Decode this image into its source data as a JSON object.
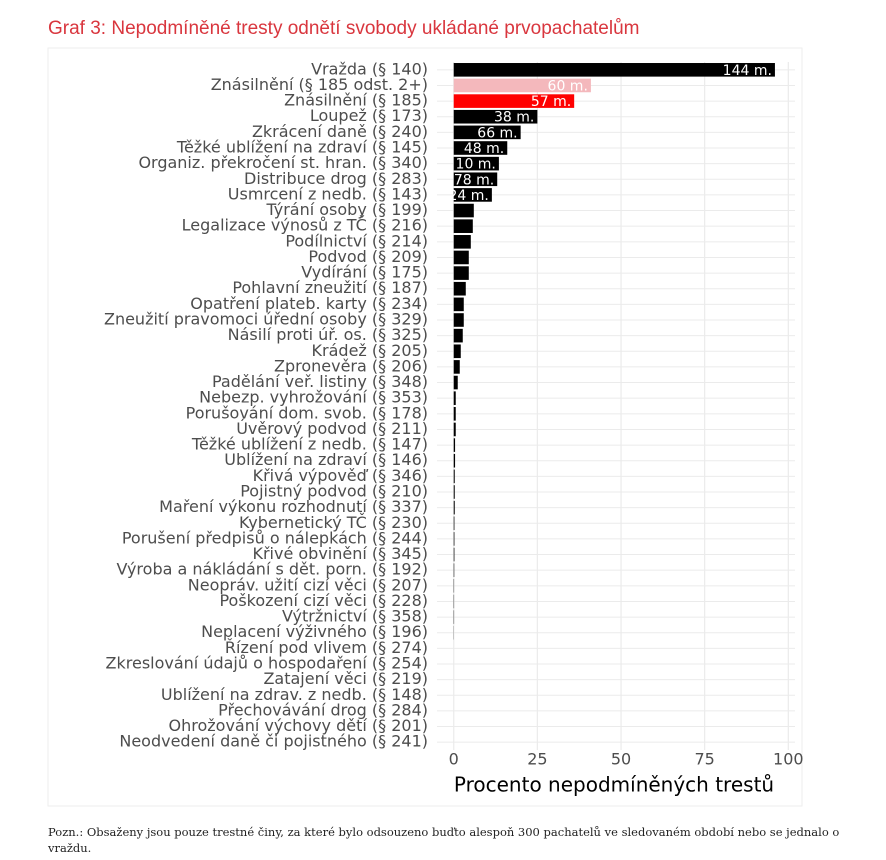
{
  "chart_data": {
    "type": "barh",
    "title": "Graf 3: Nepodmíněné tresty odnětí svobody ukládané prvopachatelům",
    "xlabel": "Procento nepodmíněných trestů",
    "note": "Pozn.: Obsaženy jsou pouze trestné činy, za které bylo odsouzeno buďto alespoň 300 pachatelů ve sledovaném období nebo se jednalo o vraždu.",
    "categories": [
      "Vražda (§ 140)",
      "Znásilnění (§ 185 odst. 2+)",
      "Znásilnění (§ 185)",
      "Loupež (§ 173)",
      "Zkrácení daně (§ 240)",
      "Těžké ublížení na zdraví (§ 145)",
      "Organiz. překročení st. hran. (§ 340)",
      "Distribuce drog (§ 283)",
      "Usmrcení z nedb. (§ 143)",
      "Týrání osoby (§ 199)",
      "Legalizace výnosů z TČ (§ 216)",
      "Podílnictví (§ 214)",
      "Podvod (§ 209)",
      "Vydírání (§ 175)",
      "Pohlavní zneužití (§ 187)",
      "Opatření plateb. karty (§ 234)",
      "Zneužití pravomoci úřední osoby (§ 329)",
      "Násilí proti úř. os. (§ 325)",
      "Krádež (§ 205)",
      "Zpronevěra (§ 206)",
      "Padělání veř. listiny (§ 348)",
      "Nebezp. vyhrožování (§ 353)",
      "Porušování dom. svob. (§ 178)",
      "Úvěrový podvod (§ 211)",
      "Těžké ublížení z nedb. (§ 147)",
      "Ublížení na zdraví (§ 146)",
      "Křivá výpověď (§ 346)",
      "Pojistný podvod (§ 210)",
      "Maření výkonu rozhodnutí (§ 337)",
      "Kybernetický TČ (§ 230)",
      "Porušení předpisů o nálepkách (§ 244)",
      "Křivé obvinění (§ 345)",
      "Výroba a nákládání s dět. porn. (§ 192)",
      "Neopráv. užití cizí věci (§ 207)",
      "Poškození cizí věci (§ 228)",
      "Výtržnictví (§ 358)",
      "Neplacení výživného (§ 196)",
      "Řízení pod vlivem (§ 274)",
      "Zkreslování údajů o hospodaření (§ 254)",
      "Zatajení věci (§ 219)",
      "Ublížení na zdrav. z nedb. (§ 148)",
      "Přechovávání drog (§ 284)",
      "Ohrožování výchovy dětí (§ 201)",
      "Neodvedení daně či pojistného (§ 241)"
    ],
    "values": [
      96,
      41,
      36,
      25,
      20,
      16,
      13.5,
      13,
      11.4,
      6,
      5.7,
      5.1,
      4.5,
      4.5,
      3.6,
      3,
      3,
      2.7,
      2.1,
      1.8,
      1.2,
      0.6,
      0.6,
      0.6,
      0.4,
      0.4,
      0.3,
      0.3,
      0.3,
      0.2,
      0.2,
      0.2,
      0.15,
      0.1,
      0.1,
      0.1,
      0.05,
      0,
      0,
      0,
      0,
      0,
      0,
      0
    ],
    "bar_labels": [
      "144 m.",
      "60 m.",
      "57 m.",
      "38 m.",
      "66 m.",
      "48 m.",
      "10 m.",
      "78 m.",
      "24 m.",
      null,
      null,
      null,
      null,
      null,
      null,
      null,
      null,
      null,
      null,
      null,
      null,
      null,
      null,
      null,
      null,
      null,
      null,
      null,
      null,
      null,
      null,
      null,
      null,
      null,
      null,
      null,
      null,
      null,
      null,
      null,
      null,
      null,
      null,
      null
    ],
    "colors": [
      "#000000",
      "#f4b8bc",
      "#ff0000",
      "#000000",
      "#000000",
      "#000000",
      "#000000",
      "#000000",
      "#000000",
      "#000000",
      "#000000",
      "#000000",
      "#000000",
      "#000000",
      "#000000",
      "#000000",
      "#000000",
      "#000000",
      "#000000",
      "#000000",
      "#000000",
      "#000000",
      "#000000",
      "#000000",
      "#000000",
      "#000000",
      "#000000",
      "#000000",
      "#000000",
      "#000000",
      "#000000",
      "#000000",
      "#000000",
      "#000000",
      "#000000",
      "#000000",
      "#000000",
      "#000000",
      "#000000",
      "#000000",
      "#000000",
      "#000000",
      "#000000",
      "#000000"
    ],
    "xlim": [
      -5,
      102
    ],
    "xticks": [
      0,
      25,
      50,
      75,
      100
    ],
    "grid": true
  }
}
